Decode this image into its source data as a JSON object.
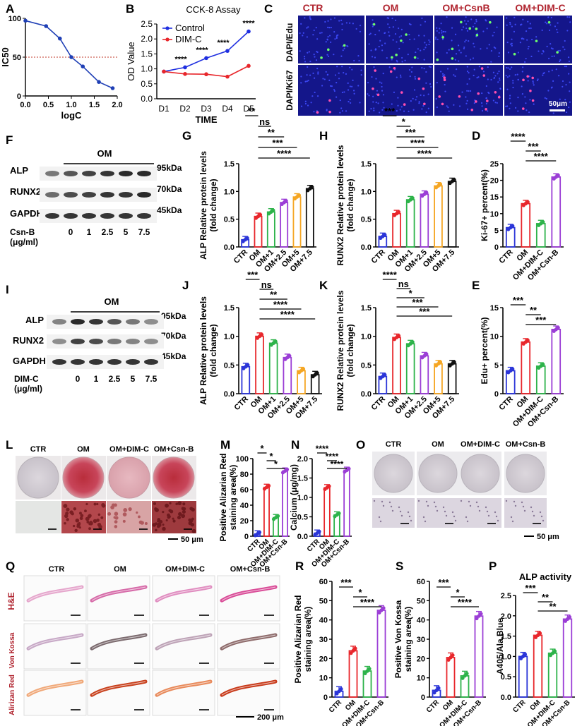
{
  "panel_letters": {
    "A": "A",
    "B": "B",
    "C": "C",
    "F": "F",
    "G": "G",
    "H": "H",
    "D": "D",
    "I": "I",
    "J": "J",
    "K": "K",
    "E": "E",
    "L": "L",
    "M": "M",
    "N": "N",
    "O": "O",
    "Q": "Q",
    "R": "R",
    "S": "S",
    "P": "P"
  },
  "colors": {
    "ctr": "#2b35d8",
    "om": "#e8262b",
    "g1": "#2db34a",
    "g2": "#9b3ed6",
    "g3": "#f5a623",
    "g4": "#111111",
    "control_line": "#1f2fe0",
    "dimc_line": "#e8262b",
    "ic50_curve": "#1f3fb5",
    "ic50_ref": "#c0392b"
  },
  "chart_data": [
    {
      "id": "A",
      "type": "line",
      "xlabel": "logC",
      "ylabel": "IC50",
      "xticks": [
        "0.0",
        "0.5",
        "1.0",
        "1.5",
        "2.0"
      ],
      "yticks": [
        "0",
        "50",
        "100"
      ],
      "xlim": [
        0,
        2.0
      ],
      "ylim": [
        0,
        100
      ],
      "points": [
        {
          "x": 0.0,
          "y": 97
        },
        {
          "x": 0.45,
          "y": 90
        },
        {
          "x": 0.75,
          "y": 74
        },
        {
          "x": 1.0,
          "y": 50
        },
        {
          "x": 1.25,
          "y": 38
        },
        {
          "x": 1.6,
          "y": 18
        },
        {
          "x": 1.9,
          "y": 10
        }
      ],
      "reference_y": 50
    },
    {
      "id": "B",
      "type": "line",
      "title": "CCK-8 Assay",
      "xlabel": "TIME",
      "ylabel": "OD Value",
      "categories": [
        "D1",
        "D2",
        "D3",
        "D4",
        "D5"
      ],
      "yticks": [
        "0.0",
        "0.5",
        "1.0",
        "1.5",
        "2.0",
        "2.5"
      ],
      "ylim": [
        0,
        2.5
      ],
      "series": [
        {
          "name": "Control",
          "values": [
            0.91,
            1.05,
            1.36,
            1.6,
            2.25
          ]
        },
        {
          "name": "DIM-C",
          "values": [
            0.91,
            0.83,
            0.82,
            0.74,
            1.1
          ]
        }
      ],
      "significance": [
        "****",
        "****",
        "****",
        "****"
      ]
    },
    {
      "id": "G",
      "type": "bar",
      "ylabel": "ALP Relative protein levels\n(fold change)",
      "categories": [
        "CTR",
        "OM",
        "OM+1",
        "OM+2.5",
        "OM+5",
        "OM+7.5"
      ],
      "values": [
        0.13,
        0.55,
        0.63,
        0.8,
        0.9,
        1.05
      ],
      "yticks": [
        "0.0",
        "0.5",
        "1.0",
        "1.5"
      ],
      "ylim": [
        0,
        1.5
      ],
      "brackets": [
        {
          "from": 0,
          "to": 1,
          "label": "**"
        },
        {
          "from": 1,
          "to": 2,
          "label": "ns"
        },
        {
          "from": 1,
          "to": 3,
          "label": "**"
        },
        {
          "from": 1,
          "to": 4,
          "label": "***"
        },
        {
          "from": 1,
          "to": 5,
          "label": "****"
        }
      ]
    },
    {
      "id": "H",
      "type": "bar",
      "ylabel": "RUNX2 Relative protein levels\n(fold change)",
      "categories": [
        "CTR",
        "OM",
        "OM+1",
        "OM+2.5",
        "OM+5",
        "OM+7.5"
      ],
      "values": [
        0.19,
        0.6,
        0.85,
        0.95,
        1.1,
        1.18
      ],
      "yticks": [
        "0.0",
        "0.5",
        "1.0",
        "1.5"
      ],
      "ylim": [
        0,
        1.5
      ],
      "brackets": [
        {
          "from": 0,
          "to": 1,
          "label": "***"
        },
        {
          "from": 1,
          "to": 2,
          "label": "*"
        },
        {
          "from": 1,
          "to": 3,
          "label": "***"
        },
        {
          "from": 1,
          "to": 4,
          "label": "****"
        },
        {
          "from": 1,
          "to": 5,
          "label": "****"
        }
      ]
    },
    {
      "id": "D",
      "type": "bar",
      "ylabel": "Ki-67+ percent(%)",
      "categories": [
        "CTR",
        "OM",
        "OM+DIM-C",
        "OM+Csn-B"
      ],
      "values": [
        5.8,
        13,
        7,
        21
      ],
      "yticks": [
        "0",
        "5",
        "10",
        "15",
        "20",
        "25"
      ],
      "ylim": [
        0,
        25
      ],
      "brackets": [
        {
          "from": 0,
          "to": 1,
          "label": "****"
        },
        {
          "from": 1,
          "to": 2,
          "label": "***"
        },
        {
          "from": 1,
          "to": 3,
          "label": "****"
        }
      ]
    },
    {
      "id": "J",
      "type": "bar",
      "ylabel": "ALP Relative protein levels\n(fold change)",
      "categories": [
        "CTR",
        "OM",
        "OM+1",
        "OM+2.5",
        "OM+5",
        "OM+7.5"
      ],
      "values": [
        0.47,
        1.0,
        0.88,
        0.63,
        0.4,
        0.33
      ],
      "yticks": [
        "0.0",
        "0.5",
        "1.0",
        "1.5"
      ],
      "ylim": [
        0,
        1.5
      ],
      "brackets": [
        {
          "from": 0,
          "to": 1,
          "label": "***"
        },
        {
          "from": 1,
          "to": 2,
          "label": "ns"
        },
        {
          "from": 1,
          "to": 3,
          "label": "**"
        },
        {
          "from": 1,
          "to": 4,
          "label": "****"
        },
        {
          "from": 1,
          "to": 5,
          "label": "****"
        }
      ]
    },
    {
      "id": "K",
      "type": "bar",
      "ylabel": "RUNX2 Relative protein levels\n(fold change)",
      "categories": [
        "CTR",
        "OM",
        "OM+1",
        "OM+2.5",
        "OM+5",
        "OM+7.5"
      ],
      "values": [
        0.3,
        0.98,
        0.87,
        0.66,
        0.52,
        0.52
      ],
      "yticks": [
        "0.0",
        "0.5",
        "1.0",
        "1.5"
      ],
      "ylim": [
        0,
        1.5
      ],
      "brackets": [
        {
          "from": 0,
          "to": 1,
          "label": "****"
        },
        {
          "from": 1,
          "to": 2,
          "label": "ns"
        },
        {
          "from": 1,
          "to": 3,
          "label": "*"
        },
        {
          "from": 1,
          "to": 4,
          "label": "***"
        },
        {
          "from": 1,
          "to": 5,
          "label": "***"
        }
      ]
    },
    {
      "id": "E",
      "type": "bar",
      "ylabel": "Edu+ percent(%)",
      "categories": [
        "CTR",
        "OM",
        "OM+DIM-C",
        "OM+Csn-B"
      ],
      "values": [
        4,
        9,
        4.8,
        11.2
      ],
      "yticks": [
        "0",
        "5",
        "10",
        "15"
      ],
      "ylim": [
        0,
        15
      ],
      "brackets": [
        {
          "from": 0,
          "to": 1,
          "label": "***"
        },
        {
          "from": 1,
          "to": 2,
          "label": "**"
        },
        {
          "from": 1,
          "to": 3,
          "label": "***"
        }
      ]
    },
    {
      "id": "M",
      "type": "bar",
      "ylabel": "Positive Alizarian Red\nstaining area(%)",
      "categories": [
        "CTR",
        "OM",
        "OM+DIM-C",
        "OM+Csn-B"
      ],
      "values": [
        3,
        63,
        24,
        84
      ],
      "yticks": [
        "0",
        "20",
        "40",
        "60",
        "80",
        "100"
      ],
      "ylim": [
        0,
        100
      ],
      "brackets": [
        {
          "from": 0,
          "to": 1,
          "label": "*"
        },
        {
          "from": 1,
          "to": 2,
          "label": "*"
        },
        {
          "from": 1,
          "to": 3,
          "label": "*"
        }
      ]
    },
    {
      "id": "N",
      "type": "bar",
      "ylabel": "Calcium (μg/mg)",
      "categories": [
        "CTR",
        "OM",
        "OM+DIM-C",
        "OM+Csn-B"
      ],
      "values": [
        0.08,
        1.25,
        0.55,
        1.7
      ],
      "yticks": [
        "0.0",
        "0.5",
        "1.0",
        "1.5",
        "2.0"
      ],
      "ylim": [
        0,
        2.0
      ],
      "brackets": [
        {
          "from": 0,
          "to": 1,
          "label": "****"
        },
        {
          "from": 1,
          "to": 2,
          "label": "****"
        },
        {
          "from": 1,
          "to": 3,
          "label": "****"
        }
      ]
    },
    {
      "id": "R",
      "type": "bar",
      "ylabel": "Positive Alizarian Red\nstaining area(%)",
      "categories": [
        "CTR",
        "OM",
        "OM+DIM-C",
        "OM+Csn-B"
      ],
      "values": [
        3,
        24,
        13.5,
        45
      ],
      "yticks": [
        "0",
        "10",
        "20",
        "30",
        "40",
        "50",
        "60"
      ],
      "ylim": [
        0,
        60
      ],
      "brackets": [
        {
          "from": 0,
          "to": 1,
          "label": "***"
        },
        {
          "from": 1,
          "to": 2,
          "label": "*"
        },
        {
          "from": 1,
          "to": 3,
          "label": "****"
        }
      ]
    },
    {
      "id": "S",
      "type": "bar",
      "ylabel": "Positive Von Kossa\nstaining area(%)",
      "categories": [
        "CTR",
        "OM",
        "OM+DIM-C",
        "OM+Csn-B"
      ],
      "values": [
        3.5,
        20.5,
        11,
        42
      ],
      "yticks": [
        "0",
        "10",
        "20",
        "30",
        "40",
        "50",
        "60"
      ],
      "ylim": [
        0,
        60
      ],
      "brackets": [
        {
          "from": 0,
          "to": 1,
          "label": "***"
        },
        {
          "from": 1,
          "to": 2,
          "label": "*"
        },
        {
          "from": 1,
          "to": 3,
          "label": "****"
        }
      ]
    },
    {
      "id": "P",
      "type": "bar",
      "title": "ALP activity",
      "ylabel": "A405/Ala.Blue",
      "categories": [
        "CTR",
        "OM",
        "OM+DIM-C",
        "OM+Csn-B"
      ],
      "values": [
        1.0,
        1.52,
        1.08,
        1.92
      ],
      "yticks": [
        "0.0",
        "0.5",
        "1.0",
        "1.5",
        "2.0",
        "2.5"
      ],
      "ylim": [
        0,
        2.5
      ],
      "brackets": [
        {
          "from": 0,
          "to": 1,
          "label": "***"
        },
        {
          "from": 1,
          "to": 2,
          "label": "**"
        },
        {
          "from": 1,
          "to": 3,
          "label": "**"
        }
      ]
    }
  ],
  "microscopy": {
    "col_labels": [
      "CTR",
      "OM",
      "OM+CsnB",
      "OM+DIM-C"
    ],
    "row_labels": [
      "DAPI/Edu",
      "DAPI/Ki67"
    ],
    "scale": "50μm"
  },
  "western_F": {
    "group": "OM",
    "bands": [
      "ALP",
      "RUNX2",
      "GAPDH"
    ],
    "kda": [
      "95kDa",
      "70kDa",
      "45kDa"
    ],
    "treatment": "Csn-B",
    "unit": "(μg/ml)",
    "doses": [
      "0",
      "1",
      "2.5",
      "5",
      "7.5"
    ]
  },
  "western_I": {
    "group": "OM",
    "bands": [
      "ALP",
      "RUNX2",
      "GAPDH"
    ],
    "kda": [
      "95kDa",
      "70kDa",
      "45kDa"
    ],
    "treatment": "DIM-C",
    "unit": "(μg/ml)",
    "doses": [
      "0",
      "1",
      "2.5",
      "5",
      "7.5"
    ]
  },
  "wells_L": {
    "labels": [
      "CTR",
      "OM",
      "OM+DIM-C",
      "OM+Csn-B"
    ],
    "scale": "50 μm"
  },
  "wells_O": {
    "labels": [
      "CTR",
      "OM",
      "OM+DIM-C",
      "OM+Csn-B"
    ],
    "scale": "50 μm"
  },
  "tissue_Q": {
    "col_labels": [
      "CTR",
      "OM",
      "OM+DIM-C",
      "OM+Csn-B"
    ],
    "row_labels": [
      "H&E",
      "Von Kossa",
      "Alirizan Red"
    ],
    "scale": "200 μm"
  }
}
